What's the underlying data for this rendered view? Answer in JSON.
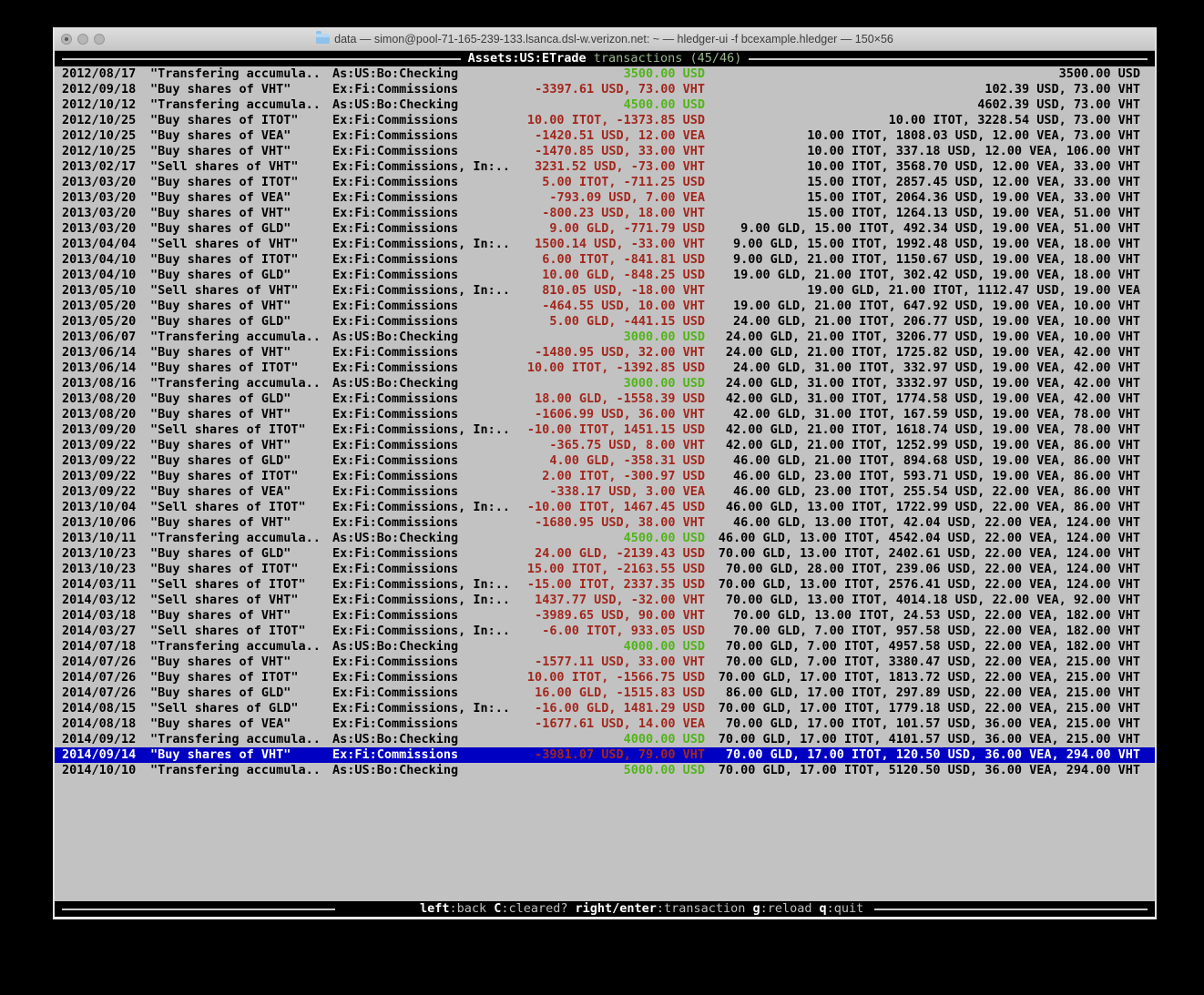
{
  "window": {
    "title": "data — simon@pool-71-165-239-133.lsanca.dsl-w.verizon.net: ~ — hledger-ui -f bcexample.hledger — 150×56"
  },
  "topbar": {
    "account": "Assets:US:ETrade",
    "mode": "transactions",
    "position": "(45/46)"
  },
  "bottombar": {
    "keys": [
      {
        "key": "left",
        "desc": ":back"
      },
      {
        "key": "C",
        "desc": ":cleared?"
      },
      {
        "key": "right/enter",
        "desc": ":transaction"
      },
      {
        "key": "g",
        "desc": ":reload"
      },
      {
        "key": "q",
        "desc": ":quit"
      }
    ]
  },
  "colors": {
    "terminal_bg": "#c2c2c2",
    "negative_red": "#a3261c",
    "positive_green": "#52b41a",
    "selection_blue": "#0000c3"
  },
  "register": {
    "selected_index": 44,
    "rows": [
      {
        "date": "2012/08/17",
        "description": "\"Transfering accumula..",
        "account": "As:US:Bo:Checking",
        "change": "3500.00 USD",
        "change_color": "green",
        "balance": "3500.00 USD"
      },
      {
        "date": "2012/09/18",
        "description": "\"Buy shares of VHT\"",
        "account": "Ex:Fi:Commissions",
        "change": "-3397.61 USD, 73.00 VHT",
        "change_color": "red",
        "balance": "102.39 USD, 73.00 VHT"
      },
      {
        "date": "2012/10/12",
        "description": "\"Transfering accumula..",
        "account": "As:US:Bo:Checking",
        "change": "4500.00 USD",
        "change_color": "green",
        "balance": "4602.39 USD, 73.00 VHT"
      },
      {
        "date": "2012/10/25",
        "description": "\"Buy shares of ITOT\"",
        "account": "Ex:Fi:Commissions",
        "change": "10.00 ITOT, -1373.85 USD",
        "change_color": "red",
        "balance": "10.00 ITOT, 3228.54 USD, 73.00 VHT"
      },
      {
        "date": "2012/10/25",
        "description": "\"Buy shares of VEA\"",
        "account": "Ex:Fi:Commissions",
        "change": "-1420.51 USD, 12.00 VEA",
        "change_color": "red",
        "balance": "10.00 ITOT, 1808.03 USD, 12.00 VEA, 73.00 VHT"
      },
      {
        "date": "2012/10/25",
        "description": "\"Buy shares of VHT\"",
        "account": "Ex:Fi:Commissions",
        "change": "-1470.85 USD, 33.00 VHT",
        "change_color": "red",
        "balance": "10.00 ITOT, 337.18 USD, 12.00 VEA, 106.00 VHT"
      },
      {
        "date": "2013/02/17",
        "description": "\"Sell shares of VHT\"",
        "account": "Ex:Fi:Commissions, In:..",
        "change": "3231.52 USD, -73.00 VHT",
        "change_color": "red",
        "balance": "10.00 ITOT, 3568.70 USD, 12.00 VEA, 33.00 VHT"
      },
      {
        "date": "2013/03/20",
        "description": "\"Buy shares of ITOT\"",
        "account": "Ex:Fi:Commissions",
        "change": "5.00 ITOT, -711.25 USD",
        "change_color": "red",
        "balance": "15.00 ITOT, 2857.45 USD, 12.00 VEA, 33.00 VHT"
      },
      {
        "date": "2013/03/20",
        "description": "\"Buy shares of VEA\"",
        "account": "Ex:Fi:Commissions",
        "change": "-793.09 USD, 7.00 VEA",
        "change_color": "red",
        "balance": "15.00 ITOT, 2064.36 USD, 19.00 VEA, 33.00 VHT"
      },
      {
        "date": "2013/03/20",
        "description": "\"Buy shares of VHT\"",
        "account": "Ex:Fi:Commissions",
        "change": "-800.23 USD, 18.00 VHT",
        "change_color": "red",
        "balance": "15.00 ITOT, 1264.13 USD, 19.00 VEA, 51.00 VHT"
      },
      {
        "date": "2013/03/20",
        "description": "\"Buy shares of GLD\"",
        "account": "Ex:Fi:Commissions",
        "change": "9.00 GLD, -771.79 USD",
        "change_color": "red",
        "balance": "9.00 GLD, 15.00 ITOT, 492.34 USD, 19.00 VEA, 51.00 VHT"
      },
      {
        "date": "2013/04/04",
        "description": "\"Sell shares of VHT\"",
        "account": "Ex:Fi:Commissions, In:..",
        "change": "1500.14 USD, -33.00 VHT",
        "change_color": "red",
        "balance": "9.00 GLD, 15.00 ITOT, 1992.48 USD, 19.00 VEA, 18.00 VHT"
      },
      {
        "date": "2013/04/10",
        "description": "\"Buy shares of ITOT\"",
        "account": "Ex:Fi:Commissions",
        "change": "6.00 ITOT, -841.81 USD",
        "change_color": "red",
        "balance": "9.00 GLD, 21.00 ITOT, 1150.67 USD, 19.00 VEA, 18.00 VHT"
      },
      {
        "date": "2013/04/10",
        "description": "\"Buy shares of GLD\"",
        "account": "Ex:Fi:Commissions",
        "change": "10.00 GLD, -848.25 USD",
        "change_color": "red",
        "balance": "19.00 GLD, 21.00 ITOT, 302.42 USD, 19.00 VEA, 18.00 VHT"
      },
      {
        "date": "2013/05/10",
        "description": "\"Sell shares of VHT\"",
        "account": "Ex:Fi:Commissions, In:..",
        "change": "810.05 USD, -18.00 VHT",
        "change_color": "red",
        "balance": "19.00 GLD, 21.00 ITOT, 1112.47 USD, 19.00 VEA"
      },
      {
        "date": "2013/05/20",
        "description": "\"Buy shares of VHT\"",
        "account": "Ex:Fi:Commissions",
        "change": "-464.55 USD, 10.00 VHT",
        "change_color": "red",
        "balance": "19.00 GLD, 21.00 ITOT, 647.92 USD, 19.00 VEA, 10.00 VHT"
      },
      {
        "date": "2013/05/20",
        "description": "\"Buy shares of GLD\"",
        "account": "Ex:Fi:Commissions",
        "change": "5.00 GLD, -441.15 USD",
        "change_color": "red",
        "balance": "24.00 GLD, 21.00 ITOT, 206.77 USD, 19.00 VEA, 10.00 VHT"
      },
      {
        "date": "2013/06/07",
        "description": "\"Transfering accumula..",
        "account": "As:US:Bo:Checking",
        "change": "3000.00 USD",
        "change_color": "green",
        "balance": "24.00 GLD, 21.00 ITOT, 3206.77 USD, 19.00 VEA, 10.00 VHT"
      },
      {
        "date": "2013/06/14",
        "description": "\"Buy shares of VHT\"",
        "account": "Ex:Fi:Commissions",
        "change": "-1480.95 USD, 32.00 VHT",
        "change_color": "red",
        "balance": "24.00 GLD, 21.00 ITOT, 1725.82 USD, 19.00 VEA, 42.00 VHT"
      },
      {
        "date": "2013/06/14",
        "description": "\"Buy shares of ITOT\"",
        "account": "Ex:Fi:Commissions",
        "change": "10.00 ITOT, -1392.85 USD",
        "change_color": "red",
        "balance": "24.00 GLD, 31.00 ITOT, 332.97 USD, 19.00 VEA, 42.00 VHT"
      },
      {
        "date": "2013/08/16",
        "description": "\"Transfering accumula..",
        "account": "As:US:Bo:Checking",
        "change": "3000.00 USD",
        "change_color": "green",
        "balance": "24.00 GLD, 31.00 ITOT, 3332.97 USD, 19.00 VEA, 42.00 VHT"
      },
      {
        "date": "2013/08/20",
        "description": "\"Buy shares of GLD\"",
        "account": "Ex:Fi:Commissions",
        "change": "18.00 GLD, -1558.39 USD",
        "change_color": "red",
        "balance": "42.00 GLD, 31.00 ITOT, 1774.58 USD, 19.00 VEA, 42.00 VHT"
      },
      {
        "date": "2013/08/20",
        "description": "\"Buy shares of VHT\"",
        "account": "Ex:Fi:Commissions",
        "change": "-1606.99 USD, 36.00 VHT",
        "change_color": "red",
        "balance": "42.00 GLD, 31.00 ITOT, 167.59 USD, 19.00 VEA, 78.00 VHT"
      },
      {
        "date": "2013/09/20",
        "description": "\"Sell shares of ITOT\"",
        "account": "Ex:Fi:Commissions, In:..",
        "change": "-10.00 ITOT, 1451.15 USD",
        "change_color": "red",
        "balance": "42.00 GLD, 21.00 ITOT, 1618.74 USD, 19.00 VEA, 78.00 VHT"
      },
      {
        "date": "2013/09/22",
        "description": "\"Buy shares of VHT\"",
        "account": "Ex:Fi:Commissions",
        "change": "-365.75 USD, 8.00 VHT",
        "change_color": "red",
        "balance": "42.00 GLD, 21.00 ITOT, 1252.99 USD, 19.00 VEA, 86.00 VHT"
      },
      {
        "date": "2013/09/22",
        "description": "\"Buy shares of GLD\"",
        "account": "Ex:Fi:Commissions",
        "change": "4.00 GLD, -358.31 USD",
        "change_color": "red",
        "balance": "46.00 GLD, 21.00 ITOT, 894.68 USD, 19.00 VEA, 86.00 VHT"
      },
      {
        "date": "2013/09/22",
        "description": "\"Buy shares of ITOT\"",
        "account": "Ex:Fi:Commissions",
        "change": "2.00 ITOT, -300.97 USD",
        "change_color": "red",
        "balance": "46.00 GLD, 23.00 ITOT, 593.71 USD, 19.00 VEA, 86.00 VHT"
      },
      {
        "date": "2013/09/22",
        "description": "\"Buy shares of VEA\"",
        "account": "Ex:Fi:Commissions",
        "change": "-338.17 USD, 3.00 VEA",
        "change_color": "red",
        "balance": "46.00 GLD, 23.00 ITOT, 255.54 USD, 22.00 VEA, 86.00 VHT"
      },
      {
        "date": "2013/10/04",
        "description": "\"Sell shares of ITOT\"",
        "account": "Ex:Fi:Commissions, In:..",
        "change": "-10.00 ITOT, 1467.45 USD",
        "change_color": "red",
        "balance": "46.00 GLD, 13.00 ITOT, 1722.99 USD, 22.00 VEA, 86.00 VHT"
      },
      {
        "date": "2013/10/06",
        "description": "\"Buy shares of VHT\"",
        "account": "Ex:Fi:Commissions",
        "change": "-1680.95 USD, 38.00 VHT",
        "change_color": "red",
        "balance": "46.00 GLD, 13.00 ITOT, 42.04 USD, 22.00 VEA, 124.00 VHT"
      },
      {
        "date": "2013/10/11",
        "description": "\"Transfering accumula..",
        "account": "As:US:Bo:Checking",
        "change": "4500.00 USD",
        "change_color": "green",
        "balance": "46.00 GLD, 13.00 ITOT, 4542.04 USD, 22.00 VEA, 124.00 VHT"
      },
      {
        "date": "2013/10/23",
        "description": "\"Buy shares of GLD\"",
        "account": "Ex:Fi:Commissions",
        "change": "24.00 GLD, -2139.43 USD",
        "change_color": "red",
        "balance": "70.00 GLD, 13.00 ITOT, 2402.61 USD, 22.00 VEA, 124.00 VHT"
      },
      {
        "date": "2013/10/23",
        "description": "\"Buy shares of ITOT\"",
        "account": "Ex:Fi:Commissions",
        "change": "15.00 ITOT, -2163.55 USD",
        "change_color": "red",
        "balance": "70.00 GLD, 28.00 ITOT, 239.06 USD, 22.00 VEA, 124.00 VHT"
      },
      {
        "date": "2014/03/11",
        "description": "\"Sell shares of ITOT\"",
        "account": "Ex:Fi:Commissions, In:..",
        "change": "-15.00 ITOT, 2337.35 USD",
        "change_color": "red",
        "balance": "70.00 GLD, 13.00 ITOT, 2576.41 USD, 22.00 VEA, 124.00 VHT"
      },
      {
        "date": "2014/03/12",
        "description": "\"Sell shares of VHT\"",
        "account": "Ex:Fi:Commissions, In:..",
        "change": "1437.77 USD, -32.00 VHT",
        "change_color": "red",
        "balance": "70.00 GLD, 13.00 ITOT, 4014.18 USD, 22.00 VEA, 92.00 VHT"
      },
      {
        "date": "2014/03/18",
        "description": "\"Buy shares of VHT\"",
        "account": "Ex:Fi:Commissions",
        "change": "-3989.65 USD, 90.00 VHT",
        "change_color": "red",
        "balance": "70.00 GLD, 13.00 ITOT, 24.53 USD, 22.00 VEA, 182.00 VHT"
      },
      {
        "date": "2014/03/27",
        "description": "\"Sell shares of ITOT\"",
        "account": "Ex:Fi:Commissions, In:..",
        "change": "-6.00 ITOT, 933.05 USD",
        "change_color": "red",
        "balance": "70.00 GLD, 7.00 ITOT, 957.58 USD, 22.00 VEA, 182.00 VHT"
      },
      {
        "date": "2014/07/18",
        "description": "\"Transfering accumula..",
        "account": "As:US:Bo:Checking",
        "change": "4000.00 USD",
        "change_color": "green",
        "balance": "70.00 GLD, 7.00 ITOT, 4957.58 USD, 22.00 VEA, 182.00 VHT"
      },
      {
        "date": "2014/07/26",
        "description": "\"Buy shares of VHT\"",
        "account": "Ex:Fi:Commissions",
        "change": "-1577.11 USD, 33.00 VHT",
        "change_color": "red",
        "balance": "70.00 GLD, 7.00 ITOT, 3380.47 USD, 22.00 VEA, 215.00 VHT"
      },
      {
        "date": "2014/07/26",
        "description": "\"Buy shares of ITOT\"",
        "account": "Ex:Fi:Commissions",
        "change": "10.00 ITOT, -1566.75 USD",
        "change_color": "red",
        "balance": "70.00 GLD, 17.00 ITOT, 1813.72 USD, 22.00 VEA, 215.00 VHT"
      },
      {
        "date": "2014/07/26",
        "description": "\"Buy shares of GLD\"",
        "account": "Ex:Fi:Commissions",
        "change": "16.00 GLD, -1515.83 USD",
        "change_color": "red",
        "balance": "86.00 GLD, 17.00 ITOT, 297.89 USD, 22.00 VEA, 215.00 VHT"
      },
      {
        "date": "2014/08/15",
        "description": "\"Sell shares of GLD\"",
        "account": "Ex:Fi:Commissions, In:..",
        "change": "-16.00 GLD, 1481.29 USD",
        "change_color": "red",
        "balance": "70.00 GLD, 17.00 ITOT, 1779.18 USD, 22.00 VEA, 215.00 VHT"
      },
      {
        "date": "2014/08/18",
        "description": "\"Buy shares of VEA\"",
        "account": "Ex:Fi:Commissions",
        "change": "-1677.61 USD, 14.00 VEA",
        "change_color": "red",
        "balance": "70.00 GLD, 17.00 ITOT, 101.57 USD, 36.00 VEA, 215.00 VHT"
      },
      {
        "date": "2014/09/12",
        "description": "\"Transfering accumula..",
        "account": "As:US:Bo:Checking",
        "change": "4000.00 USD",
        "change_color": "green",
        "balance": "70.00 GLD, 17.00 ITOT, 4101.57 USD, 36.00 VEA, 215.00 VHT"
      },
      {
        "date": "2014/09/14",
        "description": "\"Buy shares of VHT\"",
        "account": "Ex:Fi:Commissions",
        "change": "-3981.07 USD, 79.00 VHT",
        "change_color": "red",
        "balance": "70.00 GLD, 17.00 ITOT, 120.50 USD, 36.00 VEA, 294.00 VHT"
      },
      {
        "date": "2014/10/10",
        "description": "\"Transfering accumula..",
        "account": "As:US:Bo:Checking",
        "change": "5000.00 USD",
        "change_color": "green",
        "balance": "70.00 GLD, 17.00 ITOT, 5120.50 USD, 36.00 VEA, 294.00 VHT"
      }
    ]
  }
}
